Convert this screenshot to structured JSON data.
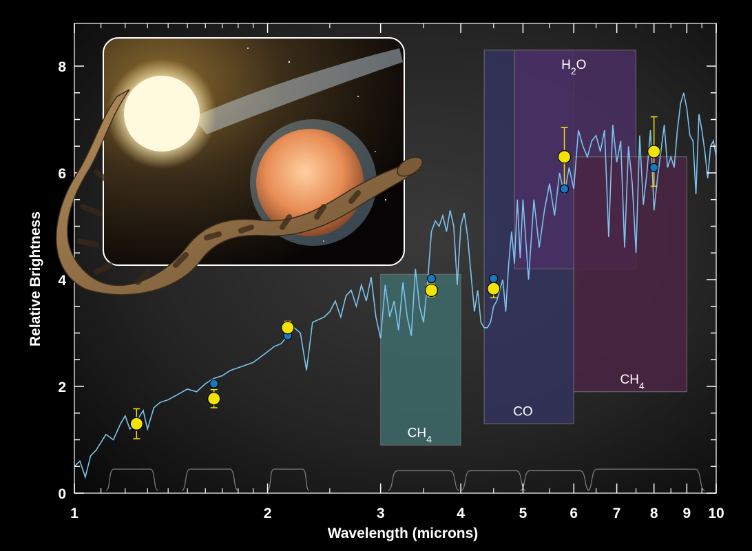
{
  "chart_data": {
    "type": "line",
    "xscale": "log",
    "xlim": [
      1,
      10
    ],
    "ylim": [
      0,
      8.8
    ],
    "xlabel": "Wavelength (microns)",
    "ylabel": "Relative Brightness",
    "grid": false,
    "x_tick_labels": [
      {
        "v": 1,
        "label": "1"
      },
      {
        "v": 2,
        "label": "2"
      },
      {
        "v": 3,
        "label": "3"
      },
      {
        "v": 4,
        "label": "4"
      },
      {
        "v": 5,
        "label": "5"
      },
      {
        "v": 6,
        "label": "6"
      },
      {
        "v": 7,
        "label": "7"
      },
      {
        "v": 8,
        "label": "8"
      },
      {
        "v": 9,
        "label": "9"
      },
      {
        "v": 10,
        "label": "10"
      }
    ],
    "y_tick_labels": [
      {
        "v": 0,
        "label": "0"
      },
      {
        "v": 2,
        "label": "2"
      },
      {
        "v": 4,
        "label": "4"
      },
      {
        "v": 6,
        "label": "6"
      },
      {
        "v": 8,
        "label": "8"
      }
    ],
    "bands": [
      {
        "x0": 3.0,
        "x1": 4.0,
        "y0": 0.9,
        "y1": 4.1,
        "color": "#3e6b6b",
        "label": "CH",
        "sub": "4",
        "label_x": 3.45,
        "label_y": 1.05
      },
      {
        "x0": 4.35,
        "x1": 6.0,
        "y0": 1.3,
        "y1": 8.3,
        "color": "#33345e",
        "label": "CO",
        "sub": "",
        "label_x": 5.0,
        "label_y": 1.45
      },
      {
        "x0": 4.85,
        "x1": 7.5,
        "y0": 4.2,
        "y1": 8.3,
        "color": "#4a2f63",
        "label": "H",
        "sub": "2",
        "tail": "O",
        "label_x": 6.0,
        "label_y": 7.95
      },
      {
        "x0": 6.0,
        "x1": 9.0,
        "y0": 1.9,
        "y1": 6.3,
        "color": "#4a2444",
        "label": "CH",
        "sub": "4",
        "label_x": 7.4,
        "label_y": 2.05
      }
    ],
    "spectrum": {
      "color": "#7cc4ec",
      "x": [
        1.0,
        1.02,
        1.04,
        1.06,
        1.08,
        1.1,
        1.12,
        1.15,
        1.18,
        1.2,
        1.22,
        1.25,
        1.28,
        1.3,
        1.33,
        1.36,
        1.4,
        1.45,
        1.5,
        1.55,
        1.6,
        1.65,
        1.7,
        1.75,
        1.8,
        1.85,
        1.9,
        1.95,
        2.0,
        2.05,
        2.1,
        2.15,
        2.2,
        2.25,
        2.3,
        2.35,
        2.4,
        2.45,
        2.5,
        2.55,
        2.6,
        2.65,
        2.7,
        2.75,
        2.8,
        2.85,
        2.9,
        2.95,
        3.0,
        3.05,
        3.1,
        3.15,
        3.2,
        3.25,
        3.3,
        3.35,
        3.4,
        3.45,
        3.5,
        3.55,
        3.6,
        3.65,
        3.7,
        3.75,
        3.8,
        3.85,
        3.9,
        3.95,
        4.0,
        4.05,
        4.1,
        4.15,
        4.2,
        4.25,
        4.3,
        4.35,
        4.4,
        4.45,
        4.5,
        4.55,
        4.6,
        4.65,
        4.7,
        4.75,
        4.8,
        4.85,
        4.9,
        4.95,
        5.0,
        5.1,
        5.2,
        5.3,
        5.4,
        5.5,
        5.6,
        5.7,
        5.8,
        5.9,
        6.0,
        6.1,
        6.2,
        6.3,
        6.4,
        6.5,
        6.6,
        6.7,
        6.8,
        6.9,
        7.0,
        7.1,
        7.2,
        7.3,
        7.4,
        7.5,
        7.6,
        7.7,
        7.8,
        7.9,
        8.0,
        8.1,
        8.2,
        8.3,
        8.4,
        8.5,
        8.6,
        8.7,
        8.8,
        8.9,
        9.0,
        9.1,
        9.2,
        9.3,
        9.4,
        9.5,
        9.6,
        9.7,
        9.8,
        9.9,
        10.0
      ],
      "y": [
        0.5,
        0.6,
        0.3,
        0.7,
        0.8,
        0.95,
        1.1,
        1.0,
        1.3,
        1.45,
        1.2,
        1.35,
        1.55,
        1.2,
        1.6,
        1.7,
        1.75,
        1.85,
        1.95,
        1.9,
        2.05,
        2.15,
        2.2,
        2.3,
        2.35,
        2.4,
        2.45,
        2.55,
        2.65,
        2.75,
        2.8,
        2.95,
        3.1,
        3.0,
        2.3,
        3.2,
        3.25,
        3.3,
        3.4,
        3.6,
        3.3,
        3.7,
        3.8,
        3.5,
        3.9,
        3.6,
        4.05,
        3.3,
        2.9,
        3.9,
        3.3,
        3.6,
        3.05,
        3.95,
        3.3,
        2.95,
        4.2,
        3.5,
        3.2,
        3.95,
        4.9,
        5.1,
        5.0,
        5.2,
        4.9,
        5.3,
        5.0,
        3.9,
        5.0,
        5.25,
        4.8,
        4.1,
        3.4,
        3.8,
        3.2,
        3.1,
        3.1,
        3.2,
        3.5,
        3.6,
        3.8,
        4.0,
        3.4,
        4.3,
        4.9,
        4.3,
        5.5,
        4.4,
        5.5,
        4.0,
        5.5,
        4.6,
        5.3,
        5.8,
        5.2,
        6.0,
        5.6,
        6.1,
        5.7,
        6.8,
        6.5,
        6.3,
        6.6,
        6.7,
        6.4,
        6.8,
        4.8,
        6.9,
        6.2,
        6.6,
        4.6,
        6.5,
        5.8,
        4.5,
        6.7,
        5.4,
        6.0,
        6.8,
        5.3,
        5.9,
        6.4,
        6.9,
        6.1,
        6.3,
        6.1,
        6.8,
        7.3,
        7.5,
        7.2,
        6.7,
        6.6,
        5.6,
        7.1,
        6.8,
        6.4,
        5.9,
        6.5,
        6.6,
        6.3
      ]
    },
    "series": [
      {
        "color": "#f2e208",
        "points": [
          {
            "x": 1.25,
            "y": 1.3,
            "err": 0.28
          },
          {
            "x": 1.65,
            "y": 1.77,
            "err": 0.17
          },
          {
            "x": 2.15,
            "y": 3.1,
            "err": 0.12
          },
          {
            "x": 3.6,
            "y": 3.8,
            "err": 0.12
          },
          {
            "x": 4.5,
            "y": 3.83,
            "err": 0.17
          },
          {
            "x": 5.8,
            "y": 6.3,
            "err": 0.55
          },
          {
            "x": 8.0,
            "y": 6.4,
            "err": 0.65
          }
        ]
      },
      {
        "color": "#1b78c0",
        "points": [
          {
            "x": 1.25,
            "y": 1.25
          },
          {
            "x": 1.65,
            "y": 2.05
          },
          {
            "x": 2.15,
            "y": 2.95
          },
          {
            "x": 3.6,
            "y": 4.02
          },
          {
            "x": 4.5,
            "y": 4.02
          },
          {
            "x": 5.8,
            "y": 5.7
          },
          {
            "x": 8.0,
            "y": 6.1
          }
        ]
      }
    ],
    "filter_bands": [
      {
        "x0": 1.12,
        "x1": 1.35,
        "h": 0.45
      },
      {
        "x0": 1.47,
        "x1": 1.8,
        "h": 0.45
      },
      {
        "x0": 2.0,
        "x1": 2.32,
        "h": 0.45
      },
      {
        "x0": 3.08,
        "x1": 3.98,
        "h": 0.42
      },
      {
        "x0": 4.0,
        "x1": 5.05,
        "h": 0.42
      },
      {
        "x0": 4.95,
        "x1": 6.35,
        "h": 0.42
      },
      {
        "x0": 6.3,
        "x1": 9.6,
        "h": 0.45
      }
    ]
  },
  "inset": {
    "description_icon": "star-planet-rattlesnake-illustration"
  }
}
